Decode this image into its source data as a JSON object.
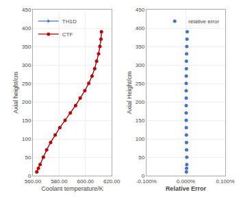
{
  "chart_data": [
    {
      "type": "line",
      "x_label": "Coolant temperature/K",
      "y_label": "Axial height/cm",
      "series": [
        {
          "name": "TH1D",
          "color": "#4472C4",
          "marker": "triangle-right",
          "x": [
            563.0,
            564.2,
            565.5,
            568.0,
            570.5,
            573.5,
            577.0,
            580.5,
            584.5,
            588.5,
            592.5,
            596.0,
            599.5,
            602.5,
            605.0,
            607.0,
            608.5,
            610.0,
            611.0,
            611.8,
            612.2
          ],
          "y": [
            10,
            20,
            30,
            50,
            70,
            90,
            110,
            130,
            150,
            170,
            190,
            210,
            230,
            250,
            270,
            290,
            310,
            330,
            350,
            370,
            390
          ]
        },
        {
          "name": "CTF",
          "color": "#C00000",
          "marker": "circle",
          "x": [
            563.0,
            564.2,
            565.5,
            568.0,
            570.5,
            573.5,
            577.0,
            580.5,
            584.5,
            588.5,
            592.5,
            596.0,
            599.5,
            602.5,
            605.0,
            607.0,
            608.5,
            610.0,
            611.0,
            611.8,
            612.2
          ],
          "y": [
            10,
            20,
            30,
            50,
            70,
            90,
            110,
            130,
            150,
            170,
            190,
            210,
            230,
            250,
            270,
            290,
            310,
            330,
            350,
            370,
            390
          ]
        }
      ],
      "xlim": [
        560.0,
        620.0
      ],
      "xticks": [
        {
          "value": 560,
          "label": "560.00"
        },
        {
          "value": 580,
          "label": "580.00"
        },
        {
          "value": 600,
          "label": "600.00"
        },
        {
          "value": 620,
          "label": "620.00"
        }
      ],
      "ylim": [
        0,
        450
      ],
      "yticks": [
        0,
        50,
        100,
        150,
        200,
        250,
        300,
        350,
        400,
        450
      ],
      "grid": true,
      "legend": "upper left"
    },
    {
      "type": "scatter",
      "x_label": "Relative Error",
      "y_label": "Axial Height/cm",
      "series": [
        {
          "name": "relative error",
          "color": "#4472C4",
          "marker": "circle",
          "x": [
            1.5e-05,
            2e-05,
            2.5e-05,
            2.5e-05,
            2e-05,
            1.8e-05,
            1.5e-05,
            1.2e-05,
            1e-05,
            1e-05,
            1e-05,
            1e-05,
            1e-05,
            1e-05,
            1.2e-05,
            1.5e-05,
            1.5e-05,
            2e-05,
            2.5e-05,
            3e-05,
            3.5e-05
          ],
          "y": [
            10,
            20,
            30,
            50,
            70,
            90,
            110,
            130,
            150,
            170,
            190,
            210,
            230,
            250,
            270,
            290,
            310,
            330,
            350,
            370,
            390
          ]
        }
      ],
      "xlim": [
        -0.001,
        0.001
      ],
      "xticks": [
        {
          "value": -0.001,
          "label": "-0.100%"
        },
        {
          "value": 0.0,
          "label": "0.000%"
        },
        {
          "value": 0.001,
          "label": "0.100%"
        }
      ],
      "ylim": [
        0,
        450
      ],
      "yticks": [
        0,
        50,
        100,
        150,
        200,
        250,
        300,
        350,
        400,
        450
      ],
      "grid": true,
      "legend": "upper right"
    }
  ]
}
